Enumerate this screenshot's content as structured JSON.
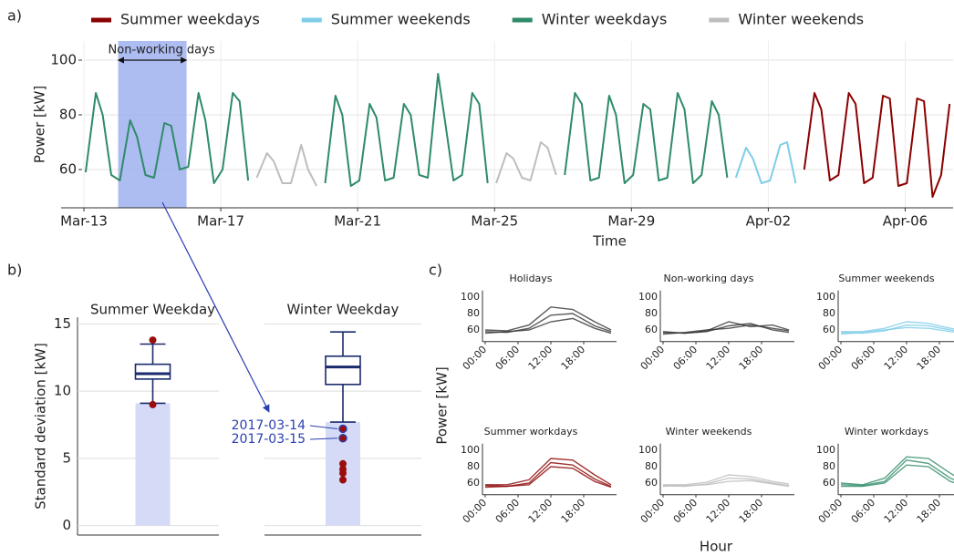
{
  "chart_data": [
    {
      "type": "line",
      "panel_label": "a)",
      "xlabel": "Time",
      "ylabel": "Power [kW]",
      "xlim": [
        0,
        25.4
      ],
      "xticks": [
        {
          "value": 0,
          "label": "Mar-13"
        },
        {
          "value": 4,
          "label": "Mar-17"
        },
        {
          "value": 8,
          "label": "Mar-21"
        },
        {
          "value": 12,
          "label": "Mar-25"
        },
        {
          "value": 16,
          "label": "Mar-29"
        },
        {
          "value": 20,
          "label": "Apr-02"
        },
        {
          "value": 24,
          "label": "Apr-06"
        }
      ],
      "ylim": [
        46,
        107
      ],
      "yticks": [
        60,
        80,
        100
      ],
      "grid": true,
      "legend": "top",
      "annotation": {
        "text": "Non-working days",
        "x": [
          1,
          3
        ],
        "color": "#9fb0ef"
      },
      "series": [
        {
          "name": "Summer weekdays",
          "color": "#8b0000",
          "x": [
            21.05,
            21.35,
            21.55,
            21.8,
            22.05,
            22.35,
            22.55,
            22.8,
            23.05,
            23.35,
            23.55,
            23.8,
            24.05,
            24.35,
            24.55,
            24.8,
            25.05,
            25.3
          ],
          "values": [
            60,
            88,
            82,
            56,
            58,
            88,
            84,
            55,
            57,
            87,
            86,
            54,
            55,
            86,
            85,
            50,
            58,
            84
          ]
        },
        {
          "name": "Summer weekends",
          "color": "#7ecde8",
          "x": [
            19.05,
            19.35,
            19.55,
            19.8,
            20.05,
            20.35,
            20.55,
            20.8
          ],
          "values": [
            57,
            68,
            64,
            55,
            56,
            69,
            70,
            55
          ]
        },
        {
          "name": "Winter weekdays",
          "color": "#2e8b67",
          "x": [
            0.05,
            0.35,
            0.55,
            0.8,
            1.05,
            1.35,
            1.55,
            1.8,
            2.05,
            2.35,
            2.55,
            2.8,
            3.05,
            3.35,
            3.55,
            3.8,
            4.05,
            4.35,
            4.55,
            4.8,
            5.5,
            7.05,
            7.35,
            7.55,
            7.8,
            8.05,
            8.35,
            8.55,
            8.8,
            9.05,
            9.35,
            9.55,
            9.8,
            10.05,
            10.35,
            10.55,
            10.8,
            11.05,
            11.35,
            11.55,
            11.8,
            12.5,
            14.05,
            14.35,
            14.55,
            14.8,
            15.05,
            15.35,
            15.55,
            15.8,
            16.05,
            16.35,
            16.55,
            16.8,
            17.05,
            17.35,
            17.55,
            17.8,
            18.05,
            18.35,
            18.55,
            18.8
          ],
          "values": [
            59,
            88,
            80,
            58,
            56,
            78,
            72,
            58,
            57,
            77,
            76,
            60,
            61,
            88,
            78,
            55,
            60,
            88,
            85,
            56,
            null,
            55,
            87,
            80,
            54,
            56,
            84,
            79,
            56,
            57,
            84,
            80,
            58,
            57,
            95,
            78,
            56,
            58,
            88,
            84,
            55,
            null,
            58,
            88,
            84,
            56,
            57,
            87,
            80,
            55,
            58,
            84,
            82,
            56,
            57,
            88,
            82,
            55,
            58,
            85,
            80,
            57
          ]
        },
        {
          "name": "Winter weekends",
          "color": "#bdbdbd",
          "x": [
            5.05,
            5.35,
            5.55,
            5.8,
            6.05,
            6.35,
            6.55,
            6.8,
            9.5,
            12.05,
            12.35,
            12.55,
            12.8,
            13.05,
            13.35,
            13.55,
            13.8
          ],
          "values": [
            57,
            66,
            63,
            55,
            55,
            69,
            60,
            54,
            null,
            55,
            66,
            64,
            57,
            56,
            70,
            68,
            58
          ]
        }
      ]
    },
    {
      "type": "box",
      "panel_label": "b)",
      "ylabel": "Standard deviation [kW]",
      "ylim": [
        -0.7,
        15.5
      ],
      "yticks": [
        0,
        5,
        10,
        15
      ],
      "grid": true,
      "bar_color": "#d5dbf7",
      "box_color": "#1a2a6c",
      "outlier_color": "#9b0d0d",
      "panels": [
        {
          "title": "Summer Weekday",
          "whislo": 9.1,
          "q1": 10.9,
          "med": 11.3,
          "q3": 12.0,
          "whishi": 13.5,
          "outliers": [
            13.8,
            9.0
          ],
          "outlier_labels": [
            null,
            null
          ]
        },
        {
          "title": "Winter Weekday",
          "whislo": 7.7,
          "q1": 10.5,
          "med": 11.8,
          "q3": 12.6,
          "whishi": 14.4,
          "outliers": [
            7.2,
            6.5,
            4.6,
            4.2,
            3.9,
            3.4
          ],
          "outlier_labels": [
            "2017-03-14",
            "2017-03-15",
            null,
            null,
            null,
            null
          ]
        }
      ]
    },
    {
      "type": "multiples",
      "panel_label": "c)",
      "xlabel": "Hour",
      "ylabel": "Power [kW]",
      "xlim": [
        0,
        24
      ],
      "xticks": [
        {
          "value": 0,
          "label": "00:00"
        },
        {
          "value": 6,
          "label": "06:00"
        },
        {
          "value": 12,
          "label": "12:00"
        },
        {
          "value": 18,
          "label": "18:00"
        }
      ],
      "ylim": [
        48,
        108
      ],
      "yticks": [
        60,
        80,
        100
      ],
      "x": [
        0,
        4,
        8,
        12,
        16,
        20,
        23
      ],
      "panels": [
        {
          "title": "Holidays",
          "color": "#333333",
          "lines": [
            [
              58,
              57,
              62,
              78,
              80,
              65,
              58
            ],
            [
              56,
              58,
              60,
              70,
              74,
              62,
              56
            ],
            [
              60,
              59,
              66,
              88,
              85,
              70,
              60
            ]
          ]
        },
        {
          "title": "Non-working days",
          "color": "#333333",
          "lines": [
            [
              57,
              56,
              58,
              65,
              68,
              60,
              57
            ],
            [
              55,
              57,
              60,
              62,
              66,
              62,
              59
            ],
            [
              58,
              56,
              59,
              70,
              64,
              66,
              60
            ]
          ]
        },
        {
          "title": "Summer weekends",
          "color": "#7ecde8",
          "lines": [
            [
              57,
              56,
              59,
              66,
              65,
              60,
              57
            ],
            [
              55,
              57,
              60,
              63,
              62,
              58,
              56
            ],
            [
              58,
              58,
              62,
              70,
              68,
              62,
              59
            ]
          ]
        },
        {
          "title": "Summer workdays",
          "color": "#8b0000",
          "lines": [
            [
              57,
              56,
              60,
              85,
              82,
              65,
              56
            ],
            [
              55,
              56,
              58,
              80,
              78,
              62,
              55
            ],
            [
              58,
              58,
              64,
              90,
              88,
              70,
              58
            ]
          ]
        },
        {
          "title": "Winter weekends",
          "color": "#bdbdbd",
          "lines": [
            [
              57,
              56,
              59,
              66,
              65,
              60,
              57
            ],
            [
              56,
              57,
              58,
              62,
              63,
              59,
              56
            ],
            [
              58,
              58,
              61,
              70,
              68,
              62,
              59
            ]
          ]
        },
        {
          "title": "Winter workdays",
          "color": "#2e8b67",
          "lines": [
            [
              58,
              57,
              62,
              88,
              84,
              66,
              58
            ],
            [
              56,
              56,
              60,
              82,
              80,
              62,
              56
            ],
            [
              60,
              58,
              66,
              92,
              90,
              72,
              60
            ]
          ]
        }
      ]
    }
  ]
}
